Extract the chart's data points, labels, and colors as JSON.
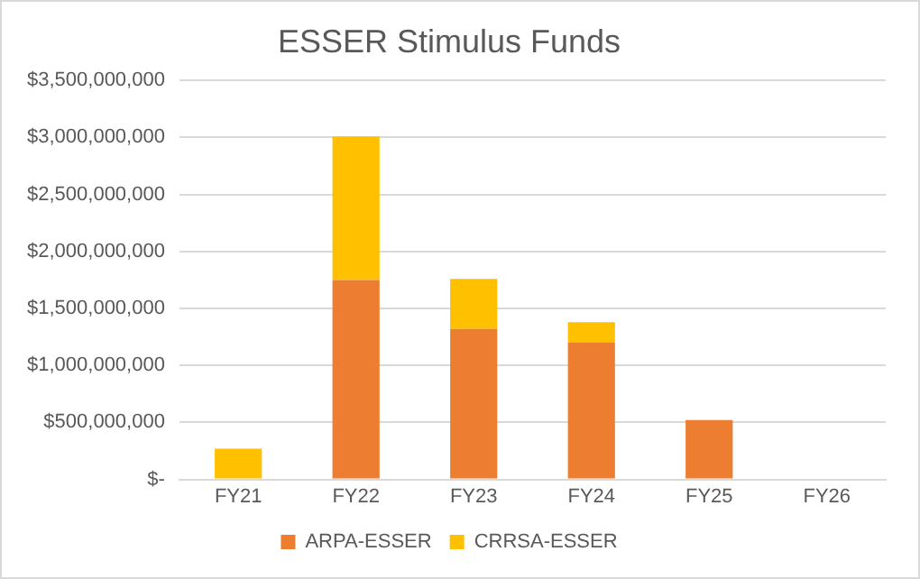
{
  "chart_data": {
    "type": "bar",
    "title": "ESSER Stimulus Funds",
    "stacked": true,
    "categories": [
      "FY21",
      "FY22",
      "FY23",
      "FY24",
      "FY25",
      "FY26"
    ],
    "series": [
      {
        "name": "ARPA-ESSER",
        "color": "#ed7d31",
        "values": [
          0,
          1750000000,
          1320000000,
          1200000000,
          520000000,
          0
        ]
      },
      {
        "name": "CRRSA-ESSER",
        "color": "#ffc000",
        "values": [
          270000000,
          1260000000,
          440000000,
          180000000,
          0,
          0
        ]
      }
    ],
    "ylim": [
      0,
      3500000000
    ],
    "yticks": [
      {
        "value": 0,
        "label": "$-"
      },
      {
        "value": 500000000,
        "label": "$500,000,000"
      },
      {
        "value": 1000000000,
        "label": "$1,000,000,000"
      },
      {
        "value": 1500000000,
        "label": "$1,500,000,000"
      },
      {
        "value": 2000000000,
        "label": "$2,000,000,000"
      },
      {
        "value": 2500000000,
        "label": "$2,500,000,000"
      },
      {
        "value": 3000000000,
        "label": "$3,000,000,000"
      },
      {
        "value": 3500000000,
        "label": "$3,500,000,000"
      }
    ],
    "grid": "y",
    "legend": "bottom"
  }
}
